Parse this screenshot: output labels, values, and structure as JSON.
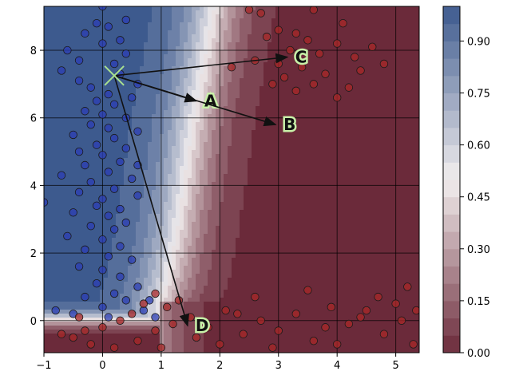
{
  "chart_data": {
    "type": "scatter",
    "title": "",
    "xlabel": "",
    "ylabel": "",
    "xlim": [
      -1,
      5.4
    ],
    "ylim": [
      -0.95,
      9.3
    ],
    "x_ticks": [
      -1,
      0,
      1,
      2,
      3,
      4,
      5
    ],
    "y_ticks": [
      0,
      2,
      4,
      6,
      8
    ],
    "grid": true,
    "colorbar": {
      "range": [
        0,
        1
      ],
      "ticks": [
        "0.00",
        "0.15",
        "0.30",
        "0.45",
        "0.60",
        "0.75",
        "0.90"
      ],
      "tick_values": [
        0,
        0.15,
        0.3,
        0.45,
        0.6,
        0.75,
        0.9
      ],
      "low_color": "#6b2a3a",
      "mid_color": "#f2eeee",
      "high_color": "#3d5a8e"
    },
    "decision_boundary": {
      "description_points_y_for_upper_branch": [
        [
          -0.55,
          1.2
        ],
        [
          1.15,
          9.3
        ]
      ],
      "points": [
        [
          -1,
          -0.05
        ],
        [
          0,
          0.0
        ],
        [
          0.6,
          0.15
        ],
        [
          0.95,
          0.5
        ],
        [
          1.1,
          1.2
        ],
        [
          1.25,
          2.5
        ],
        [
          1.4,
          4.2
        ],
        [
          1.55,
          6.0
        ],
        [
          1.75,
          7.8
        ],
        [
          1.9,
          9.3
        ]
      ]
    },
    "origin_point": {
      "x": 0.2,
      "y": 7.25,
      "color": "#a8e090"
    },
    "arrows": [
      {
        "label": "A",
        "x": 1.6,
        "y": 6.5
      },
      {
        "label": "B",
        "x": 2.95,
        "y": 5.8
      },
      {
        "label": "C",
        "x": 3.15,
        "y": 7.8
      },
      {
        "label": "D",
        "x": 1.45,
        "y": -0.15
      }
    ],
    "series": [
      {
        "color": "#2c3fb4",
        "points": [
          [
            0.0,
            9.3
          ],
          [
            -0.1,
            8.8
          ],
          [
            0.4,
            8.9
          ],
          [
            -0.3,
            8.5
          ],
          [
            0.1,
            8.7
          ],
          [
            0.3,
            8.3
          ],
          [
            -0.6,
            8.0
          ],
          [
            0.0,
            8.2
          ],
          [
            0.4,
            7.9
          ],
          [
            -0.4,
            7.7
          ],
          [
            0.2,
            7.6
          ],
          [
            -0.7,
            7.4
          ],
          [
            0.3,
            7.3
          ],
          [
            -0.4,
            7.1
          ],
          [
            0.6,
            7.0
          ],
          [
            -0.2,
            6.9
          ],
          [
            0.1,
            6.7
          ],
          [
            -0.1,
            6.5
          ],
          [
            0.5,
            6.6
          ],
          [
            0.2,
            6.4
          ],
          [
            -0.3,
            6.2
          ],
          [
            0.0,
            6.1
          ],
          [
            0.4,
            6.0
          ],
          [
            -0.2,
            5.8
          ],
          [
            0.1,
            5.7
          ],
          [
            0.6,
            5.6
          ],
          [
            -0.5,
            5.5
          ],
          [
            0.2,
            5.4
          ],
          [
            -0.1,
            5.2
          ],
          [
            0.4,
            5.1
          ],
          [
            -0.4,
            5.0
          ],
          [
            0.0,
            4.9
          ],
          [
            0.3,
            4.7
          ],
          [
            -0.3,
            4.6
          ],
          [
            0.1,
            4.4
          ],
          [
            -0.7,
            4.3
          ],
          [
            0.5,
            4.2
          ],
          [
            -0.2,
            4.1
          ],
          [
            0.2,
            3.9
          ],
          [
            -0.4,
            3.8
          ],
          [
            0.6,
            3.7
          ],
          [
            0.0,
            3.6
          ],
          [
            -0.1,
            3.4
          ],
          [
            0.3,
            3.3
          ],
          [
            -0.5,
            3.2
          ],
          [
            0.1,
            3.1
          ],
          [
            0.4,
            2.9
          ],
          [
            -0.2,
            2.8
          ],
          [
            0.2,
            2.7
          ],
          [
            -0.6,
            2.5
          ],
          [
            0.0,
            2.4
          ],
          [
            0.3,
            2.2
          ],
          [
            -0.3,
            2.1
          ],
          [
            0.1,
            1.9
          ],
          [
            0.5,
            1.8
          ],
          [
            -0.4,
            1.6
          ],
          [
            0.0,
            1.5
          ],
          [
            0.3,
            1.3
          ],
          [
            -0.1,
            1.1
          ],
          [
            0.6,
            1.0
          ],
          [
            0.2,
            0.8
          ],
          [
            -0.3,
            0.7
          ],
          [
            0.4,
            0.6
          ],
          [
            0.0,
            0.4
          ],
          [
            -0.8,
            0.3
          ],
          [
            -0.5,
            0.2
          ],
          [
            0.8,
            0.6
          ],
          [
            0.7,
            0.3
          ],
          [
            0.9,
            0.1
          ],
          [
            0.1,
            0.1
          ],
          [
            -1.0,
            3.5
          ],
          [
            0.6,
            4.6
          ]
        ]
      },
      {
        "color": "#a82828",
        "points": [
          [
            2.5,
            9.2
          ],
          [
            2.7,
            9.1
          ],
          [
            3.6,
            9.2
          ],
          [
            4.1,
            8.8
          ],
          [
            3.0,
            8.6
          ],
          [
            3.3,
            8.5
          ],
          [
            2.8,
            8.4
          ],
          [
            3.5,
            8.3
          ],
          [
            4.0,
            8.2
          ],
          [
            4.6,
            8.1
          ],
          [
            3.2,
            8.0
          ],
          [
            3.7,
            7.9
          ],
          [
            4.3,
            7.8
          ],
          [
            2.6,
            7.7
          ],
          [
            3.0,
            7.6
          ],
          [
            3.4,
            7.5
          ],
          [
            4.4,
            7.4
          ],
          [
            3.8,
            7.3
          ],
          [
            2.2,
            7.5
          ],
          [
            3.1,
            7.2
          ],
          [
            3.6,
            7.0
          ],
          [
            4.2,
            6.9
          ],
          [
            3.3,
            6.8
          ],
          [
            4.8,
            7.6
          ],
          [
            4.0,
            6.6
          ],
          [
            2.9,
            7.0
          ],
          [
            1.3,
            0.6
          ],
          [
            0.9,
            0.8
          ],
          [
            1.1,
            0.4
          ],
          [
            0.7,
            0.5
          ],
          [
            0.5,
            0.2
          ],
          [
            0.3,
            0.0
          ],
          [
            0.0,
            -0.2
          ],
          [
            -0.3,
            -0.3
          ],
          [
            -0.5,
            -0.5
          ],
          [
            -0.2,
            -0.7
          ],
          [
            0.2,
            -0.8
          ],
          [
            0.6,
            -0.6
          ],
          [
            0.9,
            -0.3
          ],
          [
            1.2,
            -0.1
          ],
          [
            1.5,
            0.1
          ],
          [
            1.8,
            -0.2
          ],
          [
            2.1,
            0.3
          ],
          [
            2.4,
            -0.4
          ],
          [
            2.7,
            0.0
          ],
          [
            3.0,
            -0.3
          ],
          [
            3.3,
            0.2
          ],
          [
            3.6,
            -0.6
          ],
          [
            3.9,
            0.4
          ],
          [
            4.2,
            -0.1
          ],
          [
            4.5,
            0.3
          ],
          [
            4.8,
            -0.4
          ],
          [
            5.1,
            0.0
          ],
          [
            5.3,
            -0.7
          ],
          [
            2.0,
            -0.7
          ],
          [
            2.6,
            0.7
          ],
          [
            3.5,
            0.9
          ],
          [
            4.7,
            0.7
          ],
          [
            5.2,
            1.0
          ],
          [
            1.6,
            -0.5
          ],
          [
            2.9,
            -0.8
          ],
          [
            4.0,
            -0.7
          ],
          [
            4.4,
            0.1
          ],
          [
            5.0,
            0.5
          ],
          [
            3.8,
            -0.2
          ],
          [
            2.3,
            0.2
          ],
          [
            1.0,
            -0.8
          ],
          [
            -0.4,
            0.1
          ],
          [
            -0.7,
            -0.4
          ],
          [
            5.35,
            0.3
          ]
        ]
      }
    ]
  }
}
